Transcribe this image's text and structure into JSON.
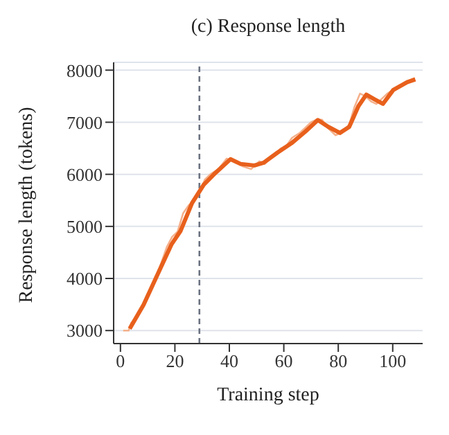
{
  "chart_data": {
    "type": "line",
    "title": "(c) Response length",
    "xlabel": "Training step",
    "ylabel": "Response length (tokens)",
    "series": [
      {
        "color": "#f5b08a",
        "x": [
          1,
          3,
          4,
          6,
          8,
          10,
          12,
          14,
          17,
          19,
          21,
          23,
          25,
          27,
          29,
          31,
          33,
          36,
          39,
          42,
          45,
          48,
          51,
          53,
          56,
          59,
          61,
          63,
          66,
          68,
          70,
          72,
          74,
          76,
          79,
          81,
          84,
          86,
          88,
          90,
          92,
          94,
          96,
          98,
          101,
          104,
          106,
          108
        ],
        "values": [
          3000,
          3000,
          3150,
          3250,
          3450,
          3650,
          3900,
          4150,
          4600,
          4800,
          4900,
          5250,
          5400,
          5500,
          5650,
          5900,
          6000,
          6100,
          6300,
          6250,
          6150,
          6100,
          6250,
          6200,
          6350,
          6500,
          6550,
          6700,
          6800,
          6900,
          7000,
          7050,
          7050,
          6900,
          6750,
          6800,
          6950,
          7300,
          7550,
          7500,
          7400,
          7350,
          7450,
          7550,
          7650,
          7750,
          7800,
          7850
        ]
      },
      {
        "color": "#e8601c",
        "x": [
          3.4,
          8.5,
          13.6,
          18.7,
          22.1,
          26.3,
          30.6,
          34.8,
          40.4,
          44.1,
          49.2,
          52.6,
          57.7,
          62.8,
          67.9,
          72.5,
          76.4,
          80.6,
          84,
          87.4,
          90.3,
          93.3,
          96.4,
          100.2,
          105.3,
          108.3
        ],
        "values": [
          3035,
          3496,
          4073,
          4650,
          4915,
          5447,
          5800,
          6023,
          6290,
          6200,
          6170,
          6223,
          6418,
          6596,
          6820,
          7043,
          6910,
          6795,
          6910,
          7308,
          7530,
          7440,
          7353,
          7620,
          7770,
          7823
        ]
      }
    ],
    "xlim": [
      -2.5,
      111
    ],
    "xticks": [
      0,
      20,
      40,
      60,
      80,
      100
    ],
    "ylim": [
      2750,
      8150
    ],
    "yticks": [
      3000,
      4000,
      5000,
      6000,
      7000,
      8000
    ],
    "grid": "y",
    "marker": "none",
    "line_style": "solid",
    "ref_lines": [
      {
        "axis": "x",
        "value": 29,
        "color": "#6b7280",
        "line_style": "dashed"
      }
    ]
  }
}
